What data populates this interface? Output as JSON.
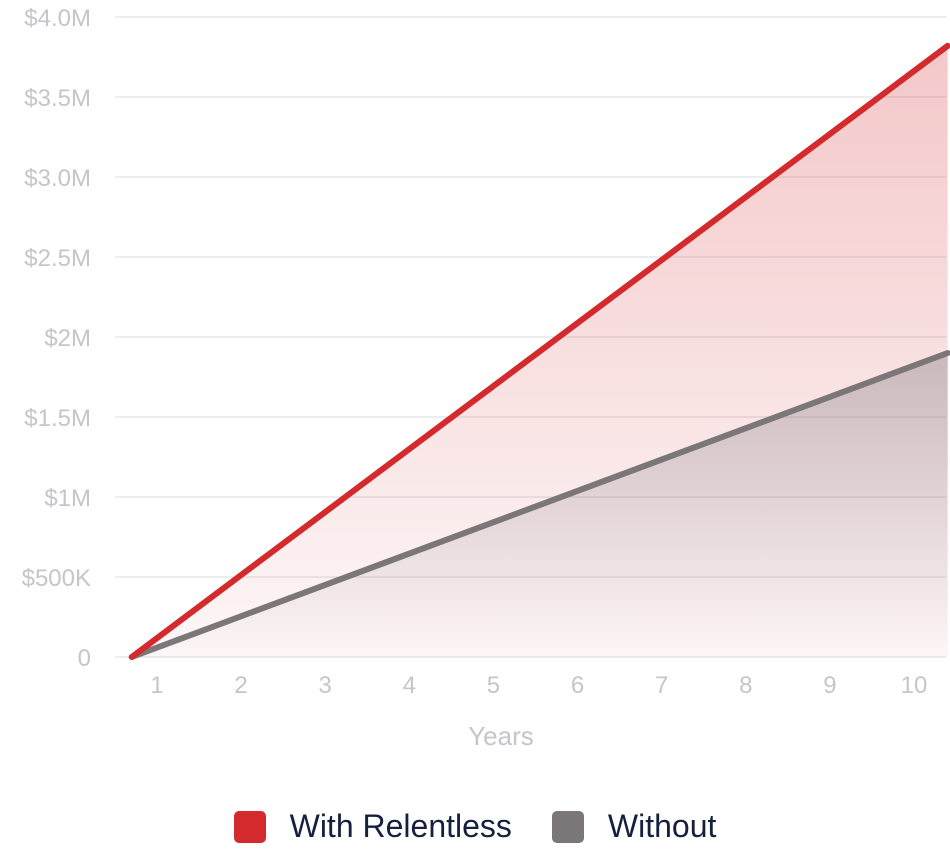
{
  "chart_data": {
    "type": "area",
    "x": [
      0.7,
      10.4
    ],
    "xlabel": "Years",
    "x_ticks": [
      "1",
      "2",
      "3",
      "4",
      "5",
      "6",
      "7",
      "8",
      "9",
      "10"
    ],
    "y_ticks": [
      "0",
      "$500K",
      "$1M",
      "$1.5M",
      "$2M",
      "$2.5M",
      "$3.0M",
      "$3.5M",
      "$4.0M"
    ],
    "ylim": [
      0,
      4000000
    ],
    "grid": true,
    "legend_position": "bottom",
    "series": [
      {
        "name": "With Relentless",
        "values": [
          0,
          3820000
        ],
        "color": "#d42a2e"
      },
      {
        "name": "Without",
        "values": [
          0,
          1900000
        ],
        "color": "#7b7779"
      }
    ]
  },
  "legend": {
    "items": [
      {
        "label": "With Relentless",
        "color": "#d42a2e"
      },
      {
        "label": "Without",
        "color": "#7b7779"
      }
    ]
  }
}
